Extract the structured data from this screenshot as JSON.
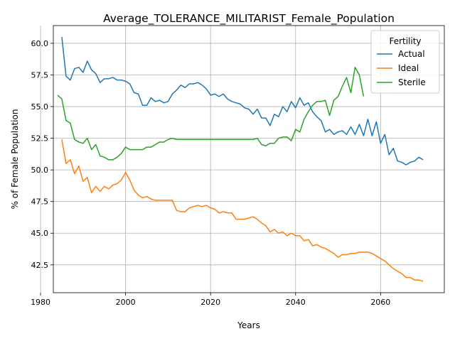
{
  "chart_data": {
    "type": "line",
    "title": "Average_TOLERANCE_MILITARIST_Female_Population",
    "xlabel": "Years",
    "ylabel": "% of Female Population",
    "xlim": [
      1983,
      2075
    ],
    "ylim": [
      40.3,
      61.4
    ],
    "x_ticks": [
      1980,
      2000,
      2020,
      2040,
      2060
    ],
    "y_ticks": [
      42.5,
      45.0,
      47.5,
      50.0,
      52.5,
      55.0,
      57.5,
      60.0
    ],
    "x_tick_labels": [
      "1980",
      "2000",
      "2020",
      "2040",
      "2060"
    ],
    "y_tick_labels": [
      "42.5",
      "45.0",
      "47.5",
      "50.0",
      "52.5",
      "55.0",
      "57.5",
      "60.0"
    ],
    "grid": true,
    "legend": {
      "title": "Fertility",
      "placement": "top-right"
    },
    "series": [
      {
        "name": "Actual",
        "color": "#1f77b4",
        "x_start": 1985,
        "values": [
          60.5,
          57.4,
          57.1,
          58.0,
          58.1,
          57.7,
          58.6,
          57.9,
          57.6,
          56.9,
          57.2,
          57.2,
          57.3,
          57.1,
          57.1,
          57.0,
          56.8,
          56.1,
          56.0,
          55.1,
          55.1,
          55.7,
          55.4,
          55.5,
          55.3,
          55.4,
          56.0,
          56.3,
          56.7,
          56.5,
          56.8,
          56.8,
          56.9,
          56.7,
          56.4,
          55.9,
          56.0,
          55.8,
          56.0,
          55.6,
          55.4,
          55.3,
          55.2,
          54.9,
          54.8,
          54.4,
          54.8,
          54.1,
          54.1,
          53.5,
          54.4,
          54.2,
          55.0,
          54.6,
          55.4,
          54.9,
          55.7,
          55.1,
          55.3,
          54.6,
          54.2,
          53.9,
          53.0,
          53.2,
          52.8,
          53.0,
          53.1,
          52.8,
          53.4,
          52.8,
          53.6,
          52.7,
          54.0,
          52.7,
          53.8,
          52.1,
          52.8,
          51.2,
          51.7,
          50.7,
          50.6,
          50.4,
          50.6,
          50.7,
          51.0,
          50.8
        ]
      },
      {
        "name": "Ideal",
        "color": "#ff7f0e",
        "x_start": 1985,
        "values": [
          52.4,
          50.5,
          50.8,
          49.7,
          50.3,
          49.1,
          49.4,
          48.2,
          48.7,
          48.3,
          48.7,
          48.5,
          48.8,
          48.9,
          49.2,
          49.8,
          49.2,
          48.4,
          48.0,
          47.8,
          47.9,
          47.7,
          47.6,
          47.6,
          47.6,
          47.6,
          47.6,
          46.8,
          46.7,
          46.7,
          47.0,
          47.1,
          47.2,
          47.1,
          47.2,
          47.0,
          46.9,
          46.6,
          46.7,
          46.6,
          46.6,
          46.1,
          46.1,
          46.1,
          46.2,
          46.3,
          46.1,
          45.8,
          45.6,
          45.1,
          45.3,
          45.0,
          45.1,
          44.8,
          45.0,
          44.8,
          44.8,
          44.4,
          44.5,
          44.0,
          44.1,
          43.9,
          43.8,
          43.6,
          43.4,
          43.1,
          43.3,
          43.3,
          43.4,
          43.4,
          43.5,
          43.5,
          43.5,
          43.4,
          43.2,
          43.0,
          42.8,
          42.5,
          42.2,
          42.0,
          41.8,
          41.5,
          41.5,
          41.3,
          41.3,
          41.2
        ]
      },
      {
        "name": "Sterile",
        "color": "#2ca02c",
        "x_start": 1984,
        "values": [
          55.9,
          55.6,
          53.9,
          53.7,
          52.4,
          52.2,
          52.1,
          52.5,
          51.6,
          52.0,
          51.1,
          51.0,
          50.8,
          50.8,
          51.0,
          51.3,
          51.8,
          51.6,
          51.6,
          51.6,
          51.6,
          51.8,
          51.8,
          52.0,
          52.2,
          52.2,
          52.4,
          52.5,
          52.4,
          52.4,
          52.4,
          52.4,
          52.4,
          52.4,
          52.4,
          52.4,
          52.4,
          52.4,
          52.4,
          52.4,
          52.4,
          52.4,
          52.4,
          52.4,
          52.4,
          52.4,
          52.4,
          52.5,
          52.0,
          51.9,
          52.1,
          52.1,
          52.5,
          52.6,
          52.6,
          52.3,
          53.2,
          53.0,
          54.0,
          54.6,
          55.1,
          55.4,
          55.4,
          55.5,
          54.3,
          55.5,
          55.8,
          56.6,
          57.3,
          56.1,
          58.1,
          57.5,
          55.8
        ]
      }
    ]
  }
}
